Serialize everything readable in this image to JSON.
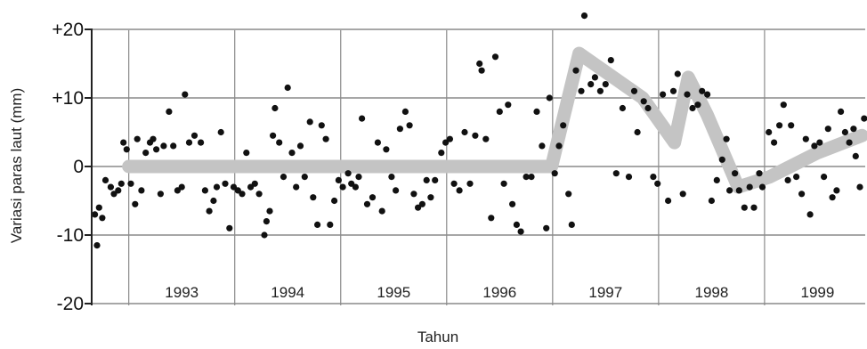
{
  "chart_data": {
    "type": "scatter",
    "title": "",
    "xlabel": "Tahun",
    "ylabel": "Variasi paras laut (mm)",
    "ylim": [
      -20,
      22
    ],
    "yticks": [
      "+20",
      "+10",
      "0",
      "-10",
      "-20"
    ],
    "ytick_values": [
      20,
      10,
      0,
      -10,
      -20
    ],
    "years": [
      "1993",
      "1994",
      "1995",
      "1996",
      "1997",
      "1998",
      "1999"
    ],
    "xlim": [
      1992.65,
      1999.95
    ],
    "grid": true,
    "colors": {
      "points": "#111111",
      "trend": "#c4c4c4",
      "grid": "#8a8a8a"
    },
    "series": [
      {
        "points": [
          [
            1992.68,
            -7
          ],
          [
            1992.7,
            -11.5
          ],
          [
            1992.72,
            -6
          ],
          [
            1992.75,
            -7.5
          ],
          [
            1992.78,
            -2
          ],
          [
            1992.83,
            -3
          ],
          [
            1992.86,
            -4
          ],
          [
            1992.9,
            -3.5
          ],
          [
            1992.93,
            -2.5
          ],
          [
            1992.95,
            3.5
          ],
          [
            1992.98,
            2.5
          ],
          [
            1993.02,
            -2.5
          ],
          [
            1993.06,
            -5.5
          ],
          [
            1993.08,
            4
          ],
          [
            1993.12,
            -3.5
          ],
          [
            1993.16,
            2
          ],
          [
            1993.2,
            3.5
          ],
          [
            1993.23,
            4
          ],
          [
            1993.26,
            2.5
          ],
          [
            1993.3,
            -4
          ],
          [
            1993.33,
            3
          ],
          [
            1993.38,
            8
          ],
          [
            1993.42,
            3
          ],
          [
            1993.46,
            -3.5
          ],
          [
            1993.5,
            -3
          ],
          [
            1993.53,
            10.5
          ],
          [
            1993.57,
            3.5
          ],
          [
            1993.62,
            4.5
          ],
          [
            1993.68,
            3.5
          ],
          [
            1993.72,
            -3.5
          ],
          [
            1993.76,
            -6.5
          ],
          [
            1993.8,
            -5
          ],
          [
            1993.83,
            -3
          ],
          [
            1993.87,
            5
          ],
          [
            1993.91,
            -2.5
          ],
          [
            1993.95,
            -9
          ],
          [
            1993.99,
            -3
          ],
          [
            1994.03,
            -3.5
          ],
          [
            1994.07,
            -4
          ],
          [
            1994.11,
            2
          ],
          [
            1994.15,
            -3
          ],
          [
            1994.19,
            -2.5
          ],
          [
            1994.23,
            -4
          ],
          [
            1994.28,
            -10
          ],
          [
            1994.3,
            -8
          ],
          [
            1994.33,
            -6.5
          ],
          [
            1994.36,
            4.5
          ],
          [
            1994.38,
            8.5
          ],
          [
            1994.42,
            3.5
          ],
          [
            1994.46,
            -1.5
          ],
          [
            1994.5,
            11.5
          ],
          [
            1994.54,
            2
          ],
          [
            1994.58,
            -3
          ],
          [
            1994.62,
            3
          ],
          [
            1994.66,
            -1.5
          ],
          [
            1994.71,
            6.5
          ],
          [
            1994.74,
            -4.5
          ],
          [
            1994.78,
            -8.5
          ],
          [
            1994.82,
            6
          ],
          [
            1994.86,
            4
          ],
          [
            1994.9,
            -8.5
          ],
          [
            1994.94,
            -5
          ],
          [
            1994.98,
            -2
          ],
          [
            1995.02,
            -3
          ],
          [
            1995.07,
            -1
          ],
          [
            1995.1,
            -2.5
          ],
          [
            1995.14,
            -3
          ],
          [
            1995.17,
            -1.5
          ],
          [
            1995.2,
            7
          ],
          [
            1995.25,
            -5.5
          ],
          [
            1995.3,
            -4.5
          ],
          [
            1995.35,
            3.5
          ],
          [
            1995.39,
            -6.5
          ],
          [
            1995.43,
            2.5
          ],
          [
            1995.48,
            -1.5
          ],
          [
            1995.52,
            -3.5
          ],
          [
            1995.56,
            5.5
          ],
          [
            1995.61,
            8
          ],
          [
            1995.65,
            6
          ],
          [
            1995.69,
            -4
          ],
          [
            1995.73,
            -6
          ],
          [
            1995.77,
            -5.5
          ],
          [
            1995.81,
            -2
          ],
          [
            1995.85,
            -4.5
          ],
          [
            1995.89,
            -2
          ],
          [
            1995.95,
            2
          ],
          [
            1995.99,
            3.5
          ],
          [
            1996.03,
            4
          ],
          [
            1996.07,
            -2.5
          ],
          [
            1996.12,
            -3.5
          ],
          [
            1996.17,
            5
          ],
          [
            1996.22,
            -2.5
          ],
          [
            1996.27,
            4.5
          ],
          [
            1996.31,
            15
          ],
          [
            1996.33,
            14
          ],
          [
            1996.37,
            4
          ],
          [
            1996.42,
            -7.5
          ],
          [
            1996.46,
            16
          ],
          [
            1996.5,
            8
          ],
          [
            1996.54,
            -2.5
          ],
          [
            1996.58,
            9
          ],
          [
            1996.62,
            -5.5
          ],
          [
            1996.66,
            -8.5
          ],
          [
            1996.7,
            -9.5
          ],
          [
            1996.75,
            -1.5
          ],
          [
            1996.8,
            -1.5
          ],
          [
            1996.85,
            8
          ],
          [
            1996.9,
            3
          ],
          [
            1996.94,
            -9
          ],
          [
            1996.97,
            10
          ],
          [
            1997.02,
            -1
          ],
          [
            1997.06,
            3
          ],
          [
            1997.1,
            6
          ],
          [
            1997.15,
            -4
          ],
          [
            1997.18,
            -8.5
          ],
          [
            1997.22,
            14
          ],
          [
            1997.27,
            11
          ],
          [
            1997.3,
            22
          ],
          [
            1997.36,
            12
          ],
          [
            1997.4,
            13
          ],
          [
            1997.45,
            11
          ],
          [
            1997.5,
            12
          ],
          [
            1997.55,
            15.5
          ],
          [
            1997.6,
            -1
          ],
          [
            1997.66,
            8.5
          ],
          [
            1997.72,
            -1.5
          ],
          [
            1997.77,
            11
          ],
          [
            1997.8,
            5
          ],
          [
            1997.86,
            9.5
          ],
          [
            1997.9,
            8.5
          ],
          [
            1997.95,
            -1.5
          ],
          [
            1997.99,
            -2.5
          ],
          [
            1998.04,
            10.5
          ],
          [
            1998.09,
            -5
          ],
          [
            1998.14,
            11
          ],
          [
            1998.18,
            13.5
          ],
          [
            1998.23,
            -4
          ],
          [
            1998.27,
            10.5
          ],
          [
            1998.32,
            8.5
          ],
          [
            1998.37,
            9
          ],
          [
            1998.41,
            11
          ],
          [
            1998.46,
            10.5
          ],
          [
            1998.5,
            -5
          ],
          [
            1998.55,
            -2
          ],
          [
            1998.6,
            1
          ],
          [
            1998.64,
            4
          ],
          [
            1998.67,
            -3.5
          ],
          [
            1998.72,
            -1
          ],
          [
            1998.76,
            -3.5
          ],
          [
            1998.81,
            -6
          ],
          [
            1998.86,
            -3
          ],
          [
            1998.9,
            -6
          ],
          [
            1998.95,
            -1
          ],
          [
            1998.98,
            -3
          ],
          [
            1999.04,
            5
          ],
          [
            1999.09,
            3.5
          ],
          [
            1999.14,
            6
          ],
          [
            1999.18,
            9
          ],
          [
            1999.22,
            -2
          ],
          [
            1999.25,
            6
          ],
          [
            1999.3,
            -1.5
          ],
          [
            1999.35,
            -4
          ],
          [
            1999.39,
            4
          ],
          [
            1999.43,
            -7
          ],
          [
            1999.47,
            3
          ],
          [
            1999.52,
            3.5
          ],
          [
            1999.56,
            -1.5
          ],
          [
            1999.6,
            5.5
          ],
          [
            1999.64,
            -4.5
          ],
          [
            1999.68,
            -3.5
          ],
          [
            1999.72,
            8
          ],
          [
            1999.76,
            5
          ],
          [
            1999.8,
            3.5
          ],
          [
            1999.84,
            5.5
          ],
          [
            1999.86,
            1.5
          ],
          [
            1999.9,
            -3
          ],
          [
            1999.94,
            7
          ]
        ]
      }
    ],
    "trend": [
      [
        1993.0,
        0
      ],
      [
        1996.99,
        0
      ],
      [
        1997.25,
        16.5
      ],
      [
        1997.85,
        10
      ],
      [
        1998.15,
        3.5
      ],
      [
        1998.28,
        13
      ],
      [
        1998.46,
        7.5
      ],
      [
        1998.75,
        -3
      ],
      [
        1999.05,
        -1.5
      ],
      [
        1999.5,
        2
      ],
      [
        1999.92,
        4.5
      ]
    ]
  }
}
